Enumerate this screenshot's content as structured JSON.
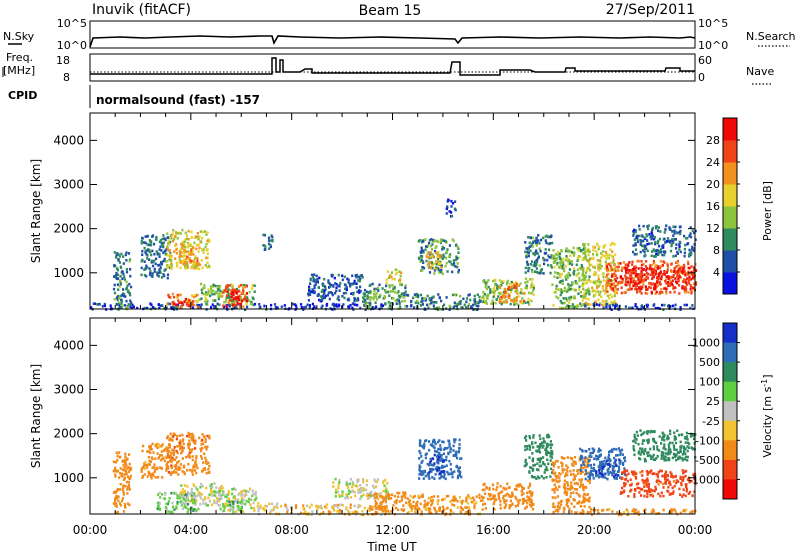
{
  "header": {
    "station": "Inuvik (fitACF)",
    "beam": "Beam 15",
    "date": "27/Sep/2011"
  },
  "summary": {
    "nsky_label": "N.Sky",
    "nsearch_label": "N.Search",
    "freq_label_line1": "Freq.",
    "freq_label_line2": "[MHz]",
    "nave_label": "Nave",
    "cpid_label": "CPID",
    "cpid_text": "normalsound (fast) -157",
    "noise_ticks": [
      "10^5",
      "10^0"
    ],
    "freq_ticks": [
      "18",
      "8"
    ],
    "nave_ticks": [
      "60",
      "0"
    ]
  },
  "chart_data": [
    {
      "type": "heatmap",
      "name": "power-panel",
      "title": "",
      "ylabel": "Slant Range [km]",
      "xlabel": "",
      "xlim": [
        0,
        24
      ],
      "ylim": [
        180,
        4620
      ],
      "yticks": [
        1000,
        2000,
        3000,
        4000
      ],
      "colorbar": {
        "label": "Power [dB]",
        "ticks": [
          "4",
          "8",
          "12",
          "16",
          "20",
          "24",
          "28"
        ],
        "colors": [
          "#0a10e0",
          "#1f4ea8",
          "#2f8a5e",
          "#8cc43c",
          "#e8d12e",
          "#f29020",
          "#f04418",
          "#f00808"
        ]
      },
      "patches": [
        {
          "t0": 0.0,
          "t1": 7.6,
          "r0": 190,
          "r1": 330,
          "v": 5
        },
        {
          "t0": 0.9,
          "t1": 1.6,
          "r0": 200,
          "r1": 1500,
          "v": 9
        },
        {
          "t0": 2.0,
          "t1": 3.2,
          "r0": 900,
          "r1": 1900,
          "v": 8
        },
        {
          "t0": 3.0,
          "t1": 4.7,
          "r0": 1100,
          "r1": 2000,
          "v": 18
        },
        {
          "t0": 3.5,
          "t1": 4.3,
          "r0": 1200,
          "r1": 1600,
          "v": 22
        },
        {
          "t0": 3.0,
          "t1": 4.3,
          "r0": 240,
          "r1": 560,
          "v": 22
        },
        {
          "t0": 3.3,
          "t1": 4.1,
          "r0": 280,
          "r1": 450,
          "v": 27
        },
        {
          "t0": 4.3,
          "t1": 6.5,
          "r0": 300,
          "r1": 780,
          "v": 13
        },
        {
          "t0": 5.2,
          "t1": 6.2,
          "r0": 240,
          "r1": 750,
          "v": 25
        },
        {
          "t0": 5.5,
          "t1": 6.0,
          "r0": 300,
          "r1": 620,
          "v": 30
        },
        {
          "t0": 6.8,
          "t1": 7.2,
          "r0": 1500,
          "r1": 1900,
          "v": 8
        },
        {
          "t0": 7.6,
          "t1": 12.0,
          "r0": 190,
          "r1": 330,
          "v": 4
        },
        {
          "t0": 8.6,
          "t1": 10.8,
          "r0": 380,
          "r1": 1000,
          "v": 6
        },
        {
          "t0": 10.8,
          "t1": 12.5,
          "r0": 200,
          "r1": 800,
          "v": 11
        },
        {
          "t0": 11.7,
          "t1": 12.3,
          "r0": 800,
          "r1": 1100,
          "v": 18
        },
        {
          "t0": 13.0,
          "t1": 14.6,
          "r0": 1000,
          "r1": 1800,
          "v": 10
        },
        {
          "t0": 13.3,
          "t1": 13.9,
          "r0": 1100,
          "r1": 1500,
          "v": 20
        },
        {
          "t0": 14.1,
          "t1": 14.5,
          "r0": 2300,
          "r1": 2700,
          "v": 5
        },
        {
          "t0": 12.5,
          "t1": 15.5,
          "r0": 190,
          "r1": 550,
          "v": 9
        },
        {
          "t0": 15.5,
          "t1": 17.6,
          "r0": 300,
          "r1": 900,
          "v": 14
        },
        {
          "t0": 16.2,
          "t1": 17.2,
          "r0": 350,
          "r1": 780,
          "v": 23
        },
        {
          "t0": 17.2,
          "t1": 18.3,
          "r0": 1000,
          "r1": 1900,
          "v": 9
        },
        {
          "t0": 18.3,
          "t1": 19.8,
          "r0": 220,
          "r1": 1600,
          "v": 13
        },
        {
          "t0": 19.5,
          "t1": 20.8,
          "r0": 300,
          "r1": 1700,
          "v": 17
        },
        {
          "t0": 20.4,
          "t1": 24.0,
          "r0": 550,
          "r1": 1300,
          "v": 25
        },
        {
          "t0": 21.2,
          "t1": 24.0,
          "r0": 650,
          "r1": 1150,
          "v": 29
        },
        {
          "t0": 21.5,
          "t1": 24.0,
          "r0": 1400,
          "r1": 2100,
          "v": 7
        },
        {
          "t0": 19.5,
          "t1": 24.0,
          "r0": 190,
          "r1": 320,
          "v": 5
        }
      ]
    },
    {
      "type": "heatmap",
      "name": "velocity-panel",
      "title": "",
      "ylabel": "Slant Range [km]",
      "xlabel": "Time UT",
      "xlim": [
        0,
        24
      ],
      "ylim": [
        180,
        4620
      ],
      "yticks": [
        1000,
        2000,
        3000,
        4000
      ],
      "xticks": [
        "00:00",
        "04:00",
        "08:00",
        "12:00",
        "16:00",
        "20:00",
        "00:00"
      ],
      "colorbar": {
        "label": "Velocity [m s^-1]",
        "ticks": [
          "1000",
          "500",
          "100",
          "25",
          "-25",
          "-100",
          "-500",
          "-1000"
        ],
        "colors": [
          "#1430c8",
          "#2e6cb8",
          "#2f8a5e",
          "#5ed040",
          "#c0c0c0",
          "#f2c230",
          "#f28a1a",
          "#f04418",
          "#f00808"
        ]
      },
      "patches": [
        {
          "t0": 0.9,
          "t1": 1.6,
          "r0": 200,
          "r1": 1600,
          "v": -300
        },
        {
          "t0": 2.0,
          "t1": 3.2,
          "r0": 1000,
          "r1": 1800,
          "v": -150
        },
        {
          "t0": 3.0,
          "t1": 4.7,
          "r0": 1100,
          "r1": 2050,
          "v": -450
        },
        {
          "t0": 2.6,
          "t1": 4.3,
          "r0": 250,
          "r1": 700,
          "v": 60
        },
        {
          "t0": 3.5,
          "t1": 5.2,
          "r0": 400,
          "r1": 900,
          "v": 0
        },
        {
          "t0": 5.0,
          "t1": 6.6,
          "r0": 250,
          "r1": 800,
          "v": 0
        },
        {
          "t0": 5.2,
          "t1": 6.0,
          "r0": 250,
          "r1": 500,
          "v": 80
        },
        {
          "t0": 6.6,
          "t1": 7.6,
          "r0": 200,
          "r1": 450,
          "v": -40
        },
        {
          "t0": 7.6,
          "t1": 12.0,
          "r0": 190,
          "r1": 420,
          "v": -60
        },
        {
          "t0": 9.6,
          "t1": 11.8,
          "r0": 550,
          "r1": 1000,
          "v": 0
        },
        {
          "t0": 11.0,
          "t1": 12.5,
          "r0": 200,
          "r1": 700,
          "v": -200
        },
        {
          "t0": 13.0,
          "t1": 14.7,
          "r0": 1000,
          "r1": 1900,
          "v": 600
        },
        {
          "t0": 13.4,
          "t1": 14.1,
          "r0": 1100,
          "r1": 1550,
          "v": 1000
        },
        {
          "t0": 12.5,
          "t1": 15.5,
          "r0": 190,
          "r1": 650,
          "v": -120
        },
        {
          "t0": 15.5,
          "t1": 17.6,
          "r0": 300,
          "r1": 900,
          "v": -250
        },
        {
          "t0": 17.2,
          "t1": 18.3,
          "r0": 1000,
          "r1": 2000,
          "v": 200
        },
        {
          "t0": 18.3,
          "t1": 19.8,
          "r0": 220,
          "r1": 1500,
          "v": -200
        },
        {
          "t0": 19.4,
          "t1": 21.2,
          "r0": 1000,
          "r1": 1700,
          "v": 600
        },
        {
          "t0": 20.0,
          "t1": 21.0,
          "r0": 1050,
          "r1": 1450,
          "v": 1000
        },
        {
          "t0": 21.0,
          "t1": 24.0,
          "r0": 600,
          "r1": 1200,
          "v": -550
        },
        {
          "t0": 21.5,
          "t1": 24.0,
          "r0": 1400,
          "r1": 2100,
          "v": 300
        },
        {
          "t0": 19.5,
          "t1": 24.0,
          "r0": 190,
          "r1": 320,
          "v": -150
        }
      ]
    }
  ]
}
